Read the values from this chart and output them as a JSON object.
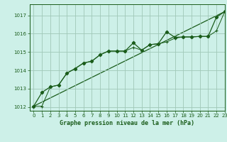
{
  "title": "Graphe pression niveau de la mer (hPa)",
  "bg_color": "#cdf0e8",
  "plot_bg": "#cdf0e8",
  "grid_color": "#a0c8b8",
  "line_color": "#1a5c1a",
  "xlim": [
    -0.5,
    23
  ],
  "ylim": [
    1011.8,
    1017.6
  ],
  "yticks": [
    1012,
    1013,
    1014,
    1015,
    1016,
    1017
  ],
  "xticks": [
    0,
    1,
    2,
    3,
    4,
    5,
    6,
    7,
    8,
    9,
    10,
    11,
    12,
    13,
    14,
    15,
    16,
    17,
    18,
    19,
    20,
    21,
    22,
    23
  ],
  "series1_x": [
    0,
    1,
    2,
    3,
    4,
    5,
    6,
    7,
    8,
    9,
    10,
    11,
    12,
    13,
    14,
    15,
    16,
    17,
    18,
    19,
    20,
    21,
    22,
    23
  ],
  "series1_y": [
    1012.05,
    1012.8,
    1013.1,
    1013.2,
    1013.85,
    1014.1,
    1014.4,
    1014.5,
    1014.85,
    1015.05,
    1015.05,
    1015.05,
    1015.5,
    1015.1,
    1015.4,
    1015.45,
    1016.1,
    1015.8,
    1015.82,
    1015.82,
    1015.85,
    1015.85,
    1016.9,
    1017.2
  ],
  "series2_x": [
    0,
    1,
    2,
    3,
    4,
    5,
    6,
    7,
    8,
    9,
    10,
    11,
    12,
    13,
    14,
    15,
    16,
    17,
    18,
    19,
    20,
    21,
    22,
    23
  ],
  "series2_y": [
    1012.05,
    1012.05,
    1013.1,
    1013.2,
    1013.85,
    1014.1,
    1014.4,
    1014.5,
    1014.85,
    1015.05,
    1015.05,
    1015.05,
    1015.25,
    1015.1,
    1015.4,
    1015.45,
    1015.55,
    1015.75,
    1015.82,
    1015.82,
    1015.85,
    1015.85,
    1016.15,
    1017.2
  ],
  "series3_x": [
    0,
    23
  ],
  "series3_y": [
    1012.05,
    1017.2
  ]
}
